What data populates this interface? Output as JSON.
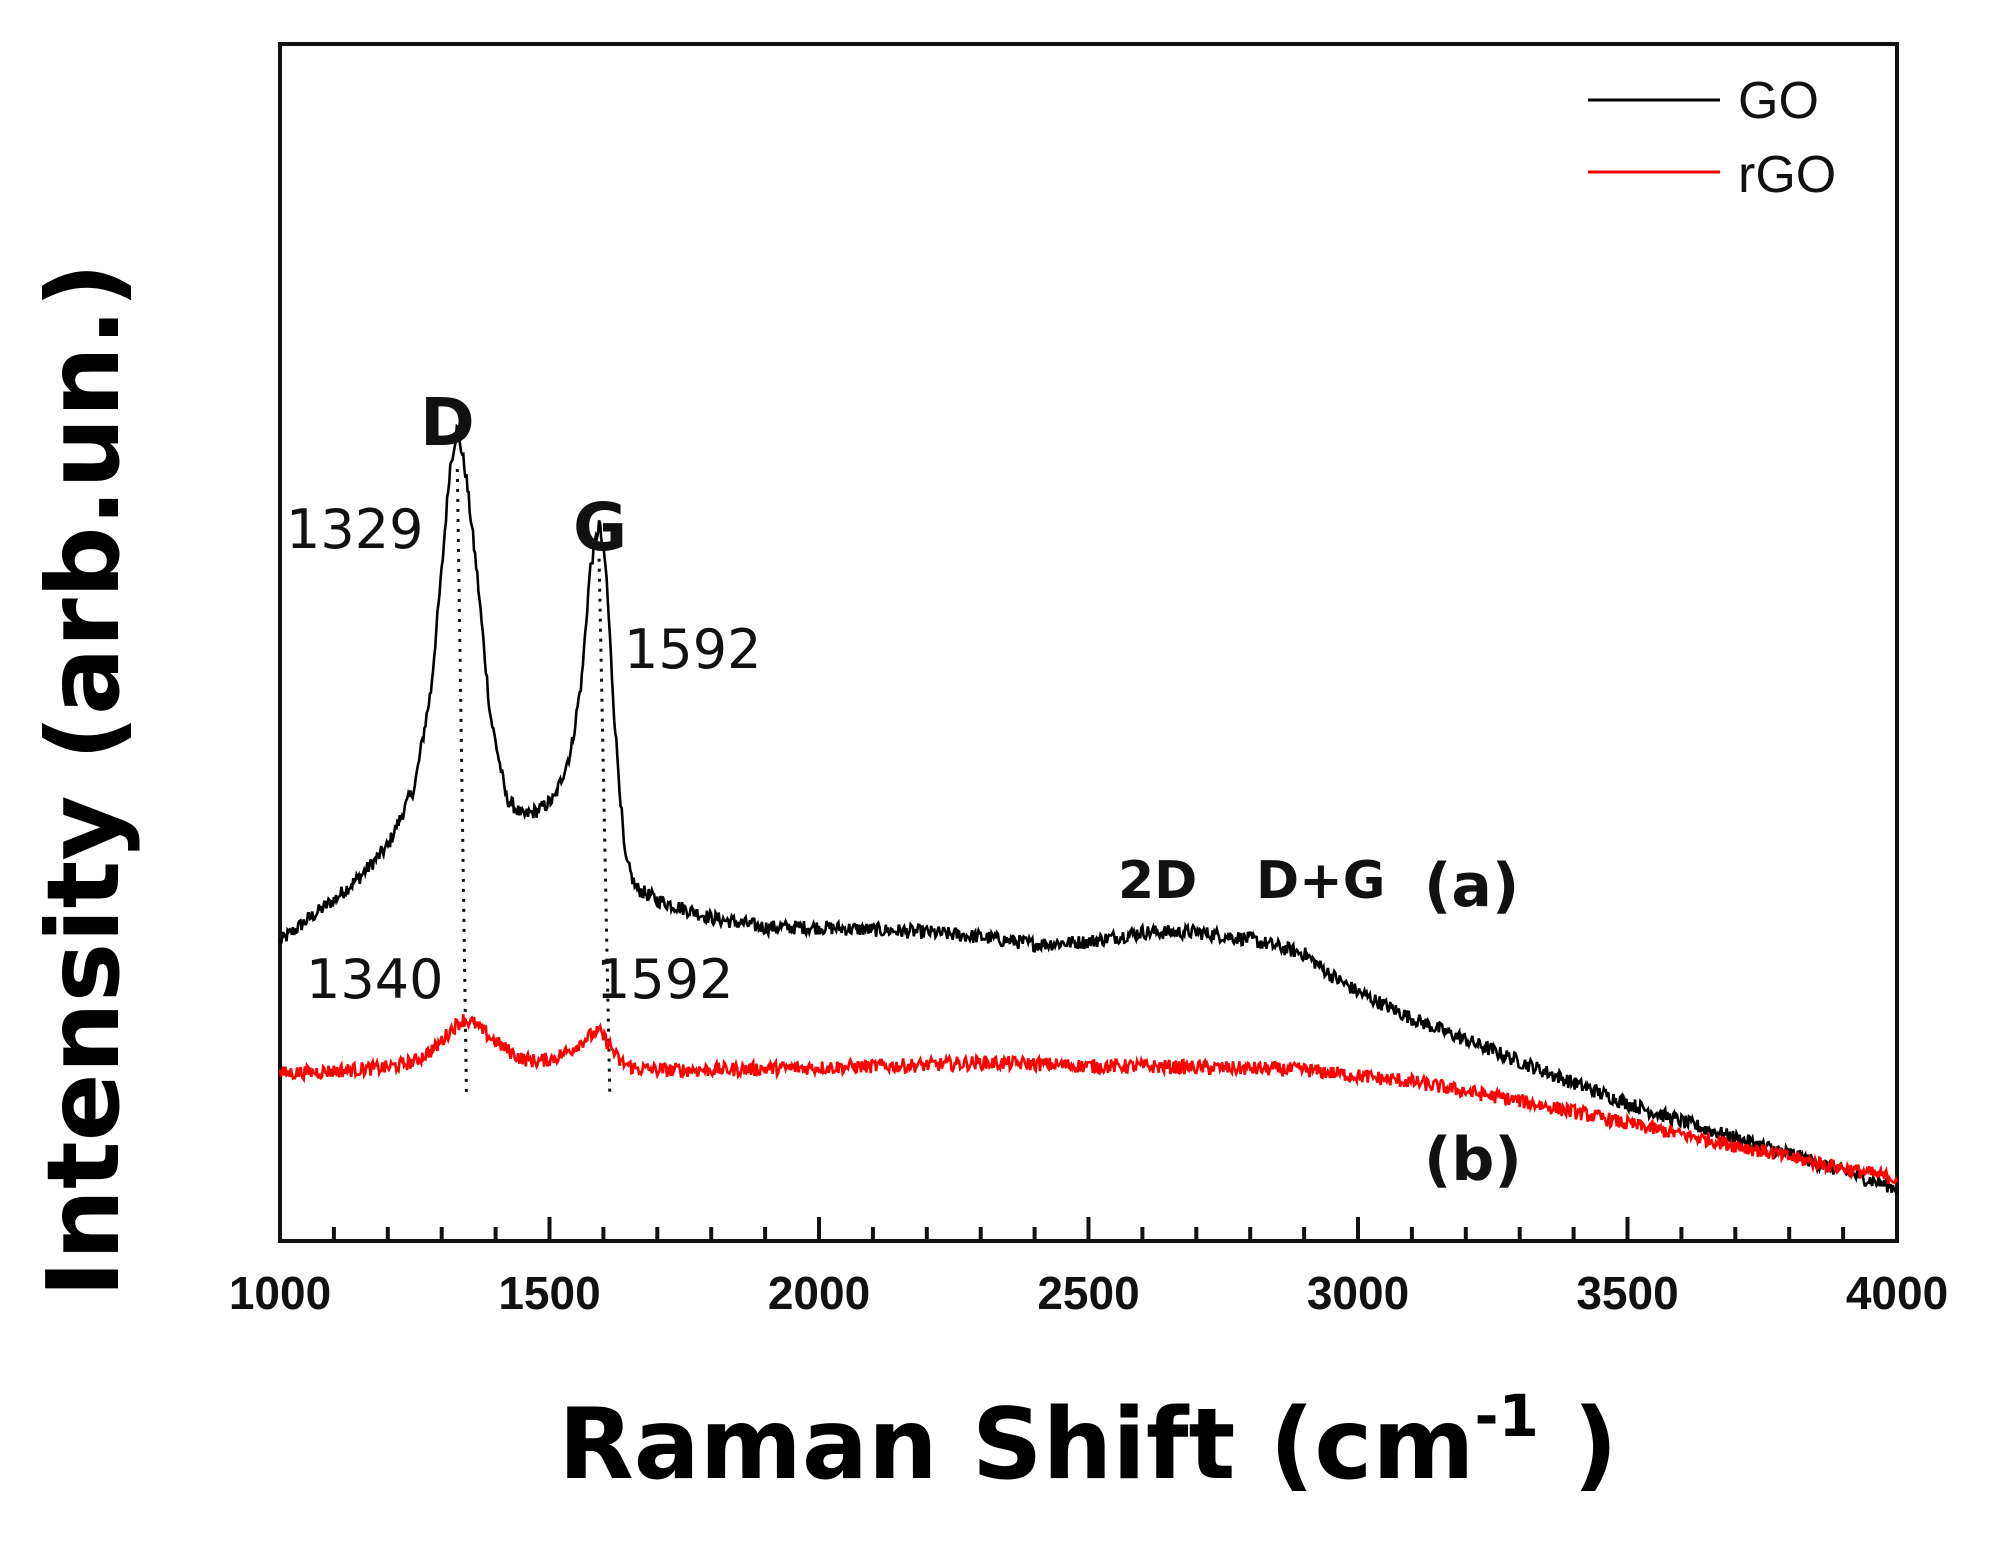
{
  "chart_data": {
    "type": "line",
    "xlabel": "Raman Shift (cm",
    "xlabel_sup": "-1",
    "xlabel_close": " )",
    "ylabel": "Intensity (arb.un.)",
    "xlim": [
      1000,
      4000
    ],
    "ylim": [
      0,
      1
    ],
    "xticks": [
      1000,
      1500,
      2000,
      2500,
      3000,
      3500,
      4000
    ],
    "xtick_labels": [
      "1000",
      "1500",
      "2000",
      "2500",
      "3000",
      "3500",
      "4000"
    ],
    "legend_position": "top-right",
    "series": [
      {
        "name": "GO",
        "color": "#000000",
        "tag": "(a)",
        "x": [
          1000,
          1050,
          1100,
          1150,
          1200,
          1250,
          1280,
          1300,
          1315,
          1329,
          1345,
          1365,
          1390,
          1420,
          1450,
          1480,
          1510,
          1540,
          1560,
          1575,
          1592,
          1605,
          1620,
          1640,
          1660,
          1700,
          1800,
          1900,
          2000,
          2100,
          2200,
          2300,
          2400,
          2500,
          2600,
          2700,
          2800,
          2900,
          2950,
          3000,
          3100,
          3200,
          3300,
          3400,
          3500,
          3600,
          3700,
          3800,
          3900,
          4000
        ],
        "y": [
          0.25,
          0.268,
          0.285,
          0.305,
          0.33,
          0.38,
          0.46,
          0.56,
          0.645,
          0.68,
          0.64,
          0.56,
          0.44,
          0.37,
          0.355,
          0.36,
          0.37,
          0.41,
          0.47,
          0.56,
          0.6,
          0.56,
          0.44,
          0.32,
          0.295,
          0.285,
          0.27,
          0.262,
          0.262,
          0.26,
          0.258,
          0.254,
          0.248,
          0.25,
          0.258,
          0.258,
          0.252,
          0.24,
          0.222,
          0.208,
          0.186,
          0.168,
          0.15,
          0.132,
          0.115,
          0.1,
          0.086,
          0.073,
          0.058,
          0.044
        ]
      },
      {
        "name": "rGO",
        "color": "#ff0000",
        "tag": "(b)",
        "x": [
          1000,
          1100,
          1200,
          1250,
          1290,
          1320,
          1340,
          1360,
          1390,
          1420,
          1450,
          1480,
          1510,
          1540,
          1570,
          1592,
          1610,
          1630,
          1660,
          1700,
          1800,
          1900,
          2000,
          2100,
          2200,
          2300,
          2400,
          2500,
          2600,
          2700,
          2800,
          2900,
          3000,
          3100,
          3200,
          3300,
          3400,
          3500,
          3600,
          3700,
          3800,
          3900,
          4000
        ],
        "y": [
          0.14,
          0.142,
          0.145,
          0.15,
          0.162,
          0.178,
          0.185,
          0.182,
          0.17,
          0.16,
          0.152,
          0.15,
          0.153,
          0.16,
          0.17,
          0.175,
          0.165,
          0.15,
          0.144,
          0.143,
          0.143,
          0.144,
          0.145,
          0.146,
          0.147,
          0.149,
          0.148,
          0.146,
          0.146,
          0.145,
          0.144,
          0.143,
          0.138,
          0.133,
          0.125,
          0.117,
          0.108,
          0.098,
          0.089,
          0.08,
          0.07,
          0.061,
          0.052
        ]
      }
    ],
    "annotations": {
      "D_label": "D",
      "G_label": "G",
      "go_d_value": "1329",
      "go_g_value": "1592",
      "rgo_d_value": "1340",
      "rgo_g_value": "1592",
      "band_2d": "2D",
      "band_dg": "D+G",
      "tag_a": "(a)",
      "tag_b": "(b)"
    },
    "peak_guides": [
      {
        "x_top": 1329,
        "y_top": 0.645,
        "x_bottom": 1346,
        "y_bottom": 0.12
      },
      {
        "x_top": 1592,
        "y_top": 0.57,
        "x_bottom": 1612,
        "y_bottom": 0.12
      }
    ]
  }
}
